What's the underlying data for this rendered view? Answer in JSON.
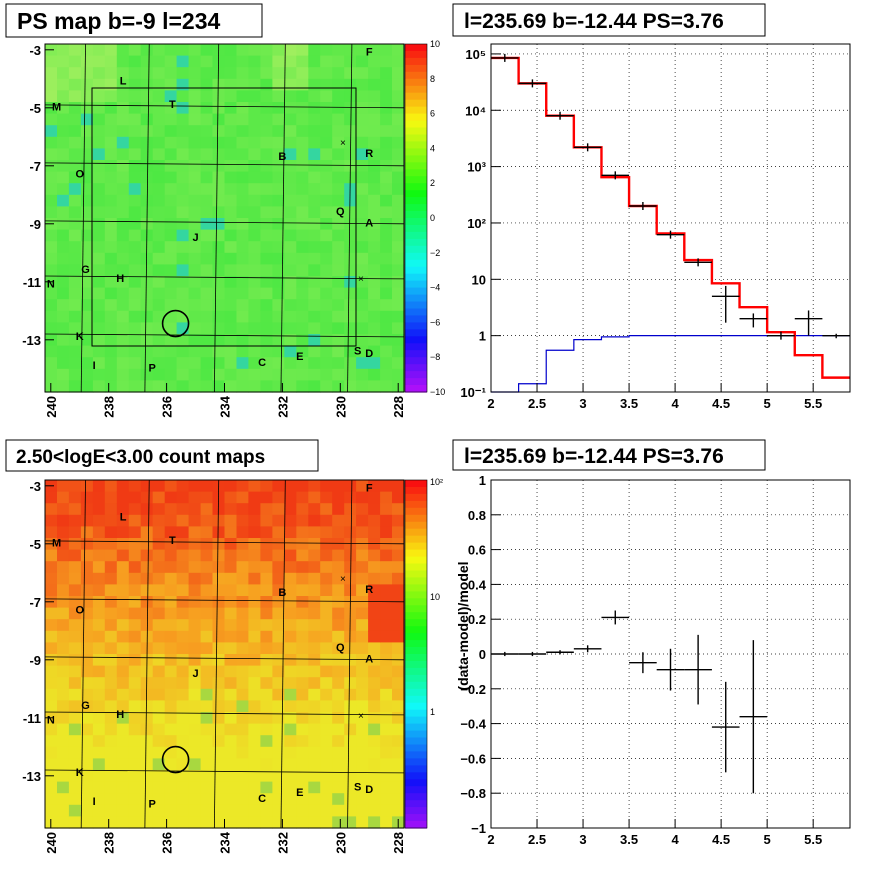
{
  "colors": {
    "map_green": "#3ee63e",
    "map_light": "#a6f060",
    "count_red": "#f03a14",
    "count_orange": "#f7a020",
    "count_yellow": "#ece827",
    "model": "#ff0000",
    "bkg": "#0000cc",
    "data": "#000000"
  },
  "panels": {
    "psmap": {
      "title": "PS map b=-9 l=234",
      "x_ticks": [
        "240",
        "238",
        "236",
        "234",
        "232",
        "230",
        "228"
      ],
      "y_ticks": [
        "-3",
        "-5",
        "-7",
        "-9",
        "-11",
        "-13"
      ],
      "colorbar_ticks": [
        "10",
        "8",
        "6",
        "4",
        "2",
        "0",
        "−2",
        "−4",
        "−6",
        "−8",
        "−10"
      ],
      "markers": [
        {
          "t": "F",
          "l": 229.0,
          "b": -3.2
        },
        {
          "t": "L",
          "l": 237.5,
          "b": -4.2
        },
        {
          "t": "M",
          "l": 239.8,
          "b": -5.1
        },
        {
          "t": "T",
          "l": 235.8,
          "b": -5.0
        },
        {
          "t": "B",
          "l": 232.0,
          "b": -6.8
        },
        {
          "t": "R",
          "l": 229.0,
          "b": -6.7
        },
        {
          "t": "O",
          "l": 239.0,
          "b": -7.4
        },
        {
          "t": "Q",
          "l": 230.0,
          "b": -8.7
        },
        {
          "t": "A",
          "l": 229.0,
          "b": -9.1
        },
        {
          "t": "J",
          "l": 235.0,
          "b": -9.6
        },
        {
          "t": "G",
          "l": 238.8,
          "b": -10.7
        },
        {
          "t": "H",
          "l": 237.6,
          "b": -11.0
        },
        {
          "t": "N",
          "l": 240.0,
          "b": -11.2
        },
        {
          "t": "K",
          "l": 239.0,
          "b": -13.0
        },
        {
          "t": "I",
          "l": 238.5,
          "b": -14.0
        },
        {
          "t": "P",
          "l": 236.5,
          "b": -14.1
        },
        {
          "t": "C",
          "l": 232.7,
          "b": -13.9
        },
        {
          "t": "E",
          "l": 231.4,
          "b": -13.7
        },
        {
          "t": "S",
          "l": 229.4,
          "b": -13.5
        },
        {
          "t": "D",
          "l": 229.0,
          "b": -13.6
        }
      ]
    },
    "countmap": {
      "title": "2.50<logE<3.00 count maps",
      "x_ticks": [
        "240",
        "238",
        "236",
        "234",
        "232",
        "230",
        "228"
      ],
      "y_ticks": [
        "-3",
        "-5",
        "-7",
        "-9",
        "-11",
        "-13"
      ],
      "colorbar_ticks": [
        "10²",
        "10",
        "1"
      ]
    },
    "spectrum": {
      "title": "l=235.69 b=-12.44 PS=3.76",
      "x_ticks": [
        "2",
        "2.5",
        "3",
        "3.5",
        "4",
        "4.5",
        "5",
        "5.5"
      ],
      "y_ticks": [
        "10⁵",
        "10⁴",
        "10³",
        "10²",
        "10",
        "1",
        "10⁻¹"
      ]
    },
    "residual": {
      "title": "l=235.69 b=-12.44 PS=3.76",
      "ylabel": "(data-model)/model",
      "x_ticks": [
        "2",
        "2.5",
        "3",
        "3.5",
        "4",
        "4.5",
        "5",
        "5.5"
      ],
      "y_ticks": [
        "1",
        "0.8",
        "0.6",
        "0.4",
        "0.2",
        "0",
        "−0.2",
        "−0.4",
        "−0.6",
        "−0.8",
        "−1"
      ]
    }
  },
  "chart_data": [
    {
      "type": "heatmap",
      "title": "PS map b=-9 l=234",
      "xlim": [
        240.2,
        227.8
      ],
      "ylim": [
        -14.8,
        -2.8
      ],
      "colorbar_range": [
        -10,
        10
      ],
      "circle": {
        "l": 235.69,
        "b": -12.44
      }
    },
    {
      "type": "heatmap",
      "title": "2.50<logE<3.00 count maps",
      "xlim": [
        240.2,
        227.8
      ],
      "ylim": [
        -14.8,
        -2.8
      ],
      "colorbar_range": [
        1,
        100
      ],
      "colorbar_log": true,
      "circle": {
        "l": 235.69,
        "b": -12.44
      }
    },
    {
      "type": "line",
      "title": "l=235.69 b=-12.44 PS=3.76",
      "xlim": [
        2.0,
        5.9
      ],
      "ylim": [
        0.1,
        150000
      ],
      "ylog": true,
      "bin_edges": [
        2.0,
        2.3,
        2.6,
        2.9,
        3.2,
        3.5,
        3.8,
        4.1,
        4.4,
        4.7,
        5.0,
        5.3,
        5.6,
        5.9
      ],
      "series": [
        {
          "values": [
            85000,
            30000,
            8000,
            2200,
            650,
            200,
            65,
            22,
            8.5,
            3.2,
            1.15,
            0.45,
            0.18
          ]
        },
        {
          "values": [
            0.1,
            0.14,
            0.55,
            0.85,
            0.95,
            1,
            1,
            1,
            1,
            1,
            1,
            1,
            1
          ]
        },
        {
          "values": [
            85000,
            30000,
            8000,
            2200,
            700,
            200,
            62,
            20,
            5,
            2,
            1,
            2,
            1
          ],
          "err_low": [
            0,
            0,
            0,
            0,
            0,
            0,
            0,
            0,
            3.3,
            0.6,
            0,
            1,
            0.1
          ]
        }
      ]
    },
    {
      "type": "scatter",
      "title": "l=235.69 b=-12.44 PS=3.76",
      "ylabel": "(data-model)/model",
      "xlim": [
        2.0,
        5.9
      ],
      "ylim": [
        -1,
        1
      ],
      "x": [
        2.15,
        2.45,
        2.75,
        3.05,
        3.35,
        3.65,
        3.95,
        4.25,
        4.55,
        4.85
      ],
      "xerr": [
        0.15,
        0.15,
        0.15,
        0.15,
        0.15,
        0.15,
        0.15,
        0.15,
        0.15,
        0.15
      ],
      "y": [
        0.0,
        0.0,
        0.01,
        0.03,
        0.21,
        -0.05,
        -0.09,
        -0.09,
        -0.42,
        -0.36
      ],
      "yerr": [
        0.005,
        0.005,
        0.01,
        0.02,
        0.04,
        0.06,
        0.12,
        0.2,
        0.26,
        0.44
      ]
    }
  ]
}
